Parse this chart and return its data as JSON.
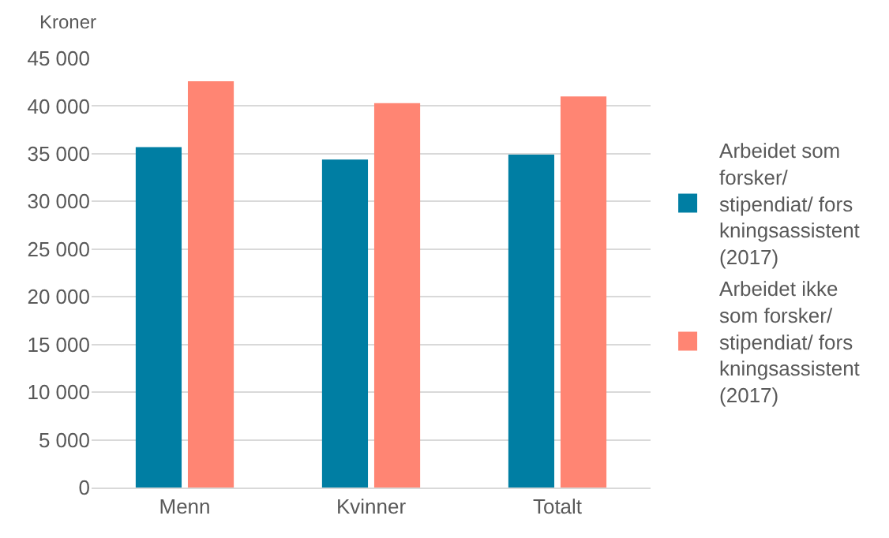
{
  "chart_data": {
    "type": "bar",
    "ylabel": "Kroner",
    "categories": [
      "Menn",
      "Kvinner",
      "Totalt"
    ],
    "series": [
      {
        "name": "Arbeidet som forsker/ stipendiat/ forskningsassistent (2017)",
        "color": "#007ea3",
        "values": [
          35700,
          34400,
          34900
        ]
      },
      {
        "name": "Arbeidet ikke som forsker/ stipendiat/ forskningsassistent (2017)",
        "color": "#ff8573",
        "values": [
          42600,
          40300,
          41000
        ]
      }
    ],
    "ylim": [
      0,
      45000
    ],
    "yticks": [
      {
        "value": 0,
        "label": "0"
      },
      {
        "value": 5000,
        "label": "5 000"
      },
      {
        "value": 10000,
        "label": "10 000"
      },
      {
        "value": 15000,
        "label": "15 000"
      },
      {
        "value": 20000,
        "label": "20 000"
      },
      {
        "value": 25000,
        "label": "25 000"
      },
      {
        "value": 30000,
        "label": "30 000"
      },
      {
        "value": 35000,
        "label": "35 000"
      },
      {
        "value": 40000,
        "label": "40 000"
      },
      {
        "value": 45000,
        "label": "45 000"
      }
    ],
    "grid": "y",
    "legend": "right"
  }
}
